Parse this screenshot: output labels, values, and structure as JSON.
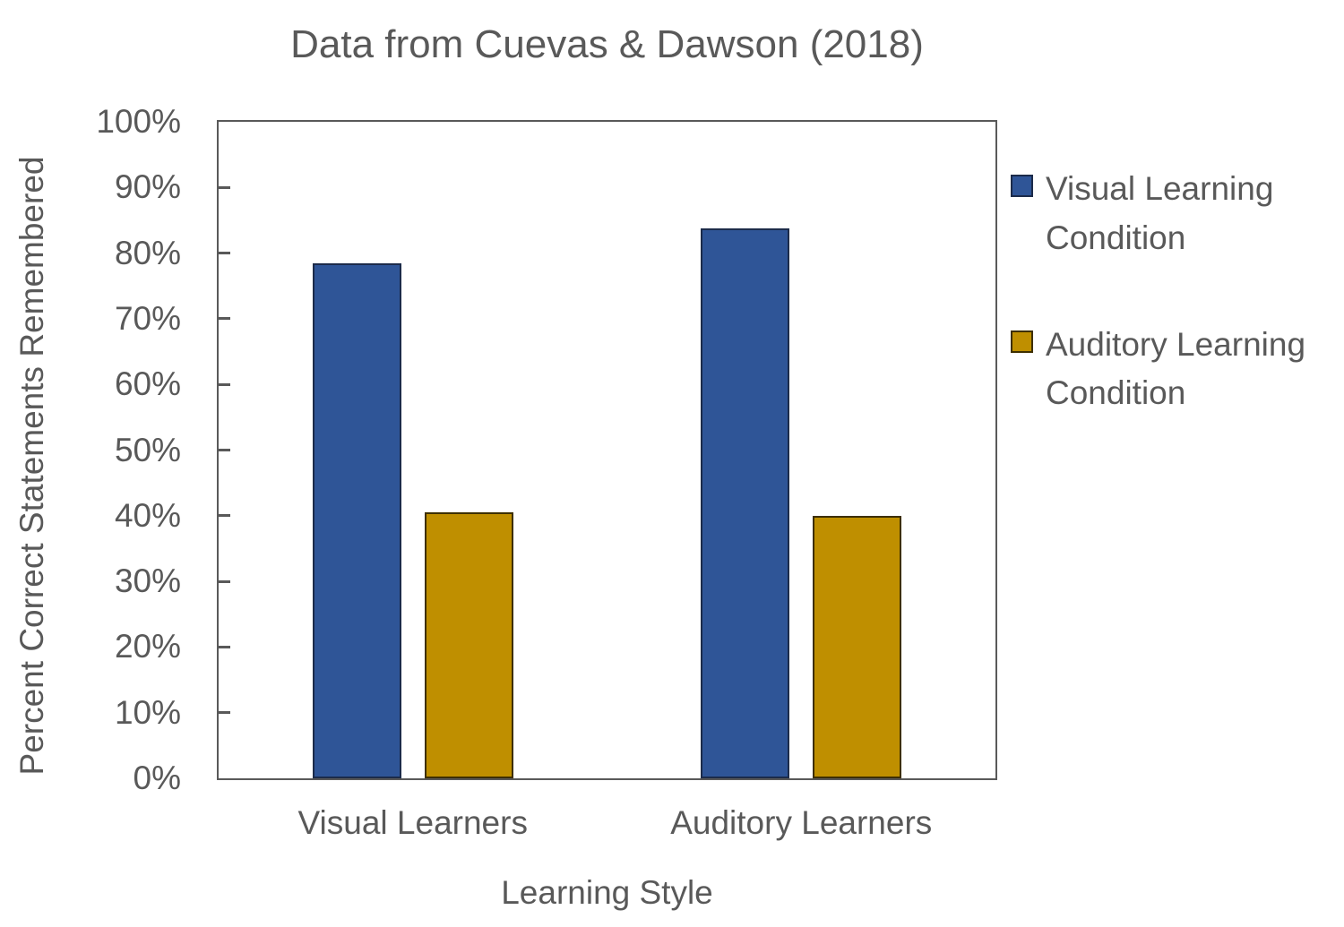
{
  "chart_data": {
    "type": "bar",
    "title": "Data from Cuevas & Dawson (2018)",
    "xlabel": "Learning Style",
    "ylabel": "Percent Correct Statements Remembered",
    "categories": [
      "Visual Learners",
      "Auditory Learners"
    ],
    "series": [
      {
        "name": "Visual Learning Condition",
        "color": "#2F5597",
        "border_color": "#1C2B4A",
        "values": [
          78.5,
          83.7
        ]
      },
      {
        "name": "Auditory Learning Condition",
        "color": "#BF8F00",
        "border_color": "#3D2F00",
        "values": [
          40.5,
          40
        ]
      }
    ],
    "ylim": [
      0,
      100
    ],
    "y_tick_step": 10,
    "y_ticks": [
      "0%",
      "10%",
      "20%",
      "30%",
      "40%",
      "50%",
      "60%",
      "70%",
      "80%",
      "90%",
      "100%"
    ],
    "grid": false,
    "legend_position": "right",
    "tick_direction": "inside"
  },
  "colors": {
    "text": "#595959",
    "axis": "#595959",
    "background": "#FFFFFF"
  }
}
